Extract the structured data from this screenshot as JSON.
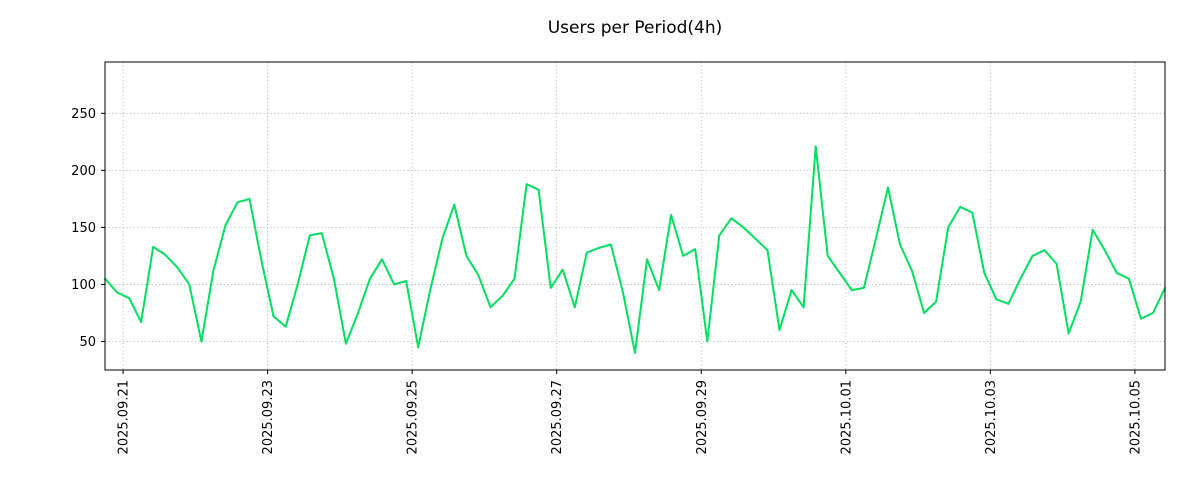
{
  "figure": {
    "background": "#ffffff"
  },
  "chart_data": {
    "type": "line",
    "title": "Users per Period(4h)",
    "xlabel": "",
    "ylabel": "",
    "legend": "none",
    "grid": "dotted",
    "line_color": "#00df5f",
    "grid_color": "#b0b0b0",
    "axis_color": "#000000",
    "tick_label_color": "#000000",
    "y_ticks": [
      50,
      100,
      150,
      200,
      250
    ],
    "ylim": [
      25,
      295
    ],
    "x_tick_labels": [
      "2025.09.21",
      "2025.09.23",
      "2025.09.25",
      "2025.09.27",
      "2025.09.29",
      "2025.10.01",
      "2025.10.03",
      "2025.10.05"
    ],
    "x_tick_indices": [
      1.5,
      13.5,
      25.5,
      37.5,
      49.5,
      61.5,
      73.5,
      85.5
    ],
    "points_per_day": 6,
    "values": [
      105,
      93,
      88,
      67,
      133,
      126,
      115,
      100,
      50,
      112,
      152,
      172,
      175,
      120,
      72,
      63,
      100,
      143,
      145,
      105,
      48,
      75,
      105,
      122,
      100,
      103,
      45,
      95,
      140,
      170,
      125,
      108,
      80,
      90,
      105,
      188,
      183,
      97,
      113,
      80,
      128,
      132,
      135,
      93,
      40,
      122,
      95,
      161,
      125,
      131,
      50,
      143,
      158,
      150,
      140,
      130,
      60,
      95,
      80,
      221,
      125,
      110,
      95,
      97,
      140,
      185,
      135,
      112,
      75,
      85,
      150,
      168,
      163,
      110,
      87,
      83,
      105,
      125,
      130,
      118,
      57,
      85,
      148,
      130,
      110,
      105,
      70,
      75,
      97
    ]
  }
}
